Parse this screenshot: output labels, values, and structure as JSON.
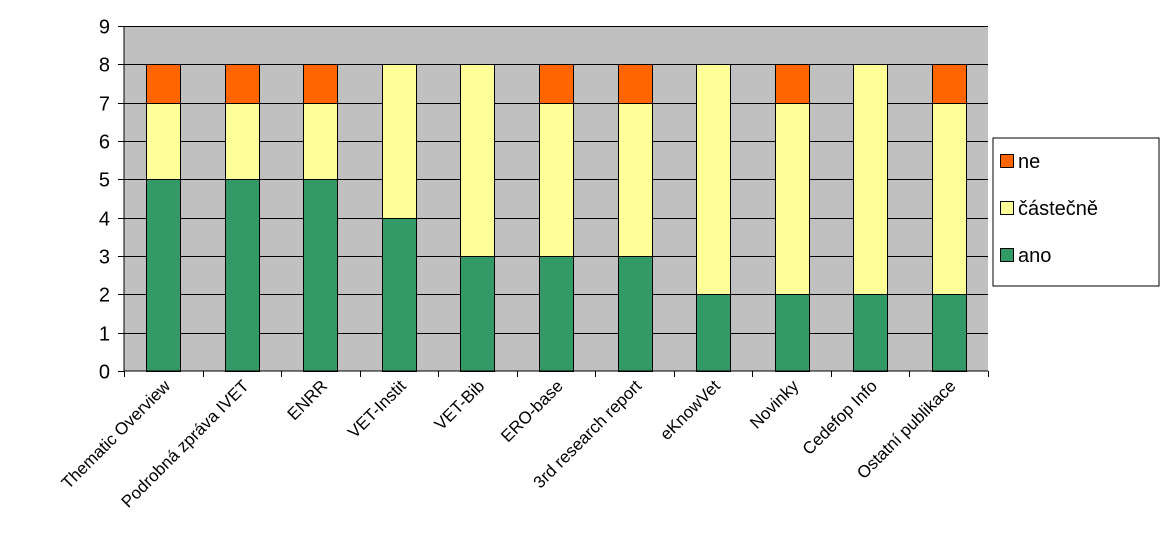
{
  "chart_data": {
    "type": "bar",
    "stacked": true,
    "title": "",
    "xlabel": "",
    "ylabel": "",
    "ylim": [
      0,
      9
    ],
    "yticks": [
      0,
      1,
      2,
      3,
      4,
      5,
      6,
      7,
      8,
      9
    ],
    "grid": true,
    "plot_background": "#c0c0c0",
    "legend_position": "right",
    "categories": [
      "Thematic Overview",
      "Podrobná zpráva IVET",
      "ENRR",
      "VET-Instit",
      "VET-Bib",
      "ERO-base",
      "3rd research report",
      "eKnowVet",
      "Novinky",
      "Cedefop Info",
      "Ostatní publikace"
    ],
    "series": [
      {
        "name": "ano",
        "color": "#339966",
        "values": [
          5,
          5,
          5,
          4,
          3,
          3,
          3,
          2,
          2,
          2,
          2
        ]
      },
      {
        "name": "částečně",
        "color": "#ffff99",
        "values": [
          2,
          2,
          2,
          4,
          5,
          4,
          4,
          6,
          5,
          6,
          5
        ]
      },
      {
        "name": "ne",
        "color": "#ff6600",
        "values": [
          1,
          1,
          1,
          0,
          0,
          1,
          1,
          0,
          1,
          0,
          1
        ]
      }
    ],
    "legend_order": [
      "ne",
      "částečně",
      "ano"
    ]
  }
}
